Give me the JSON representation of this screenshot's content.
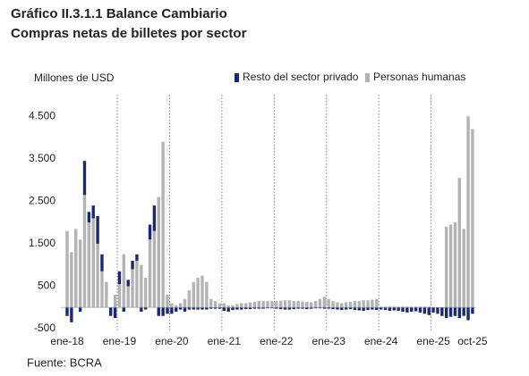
{
  "chart_data": {
    "type": "stacked_bar",
    "title": "Gráfico II.3.1.1 Balance Cambiario",
    "subtitle": "Compras netas de billetes por sector",
    "y_axis_label": "Millones de USD",
    "source": "Fuente: BCRA",
    "categories": [
      "ene-18",
      null,
      null,
      null,
      null,
      null,
      null,
      null,
      null,
      null,
      null,
      null,
      "ene-19",
      null,
      null,
      null,
      null,
      null,
      null,
      null,
      null,
      null,
      null,
      null,
      "ene-20",
      null,
      null,
      null,
      null,
      null,
      null,
      null,
      null,
      null,
      null,
      null,
      "ene-21",
      null,
      null,
      null,
      null,
      null,
      null,
      null,
      null,
      null,
      null,
      null,
      "ene-22",
      null,
      null,
      null,
      null,
      null,
      null,
      null,
      null,
      null,
      null,
      null,
      "ene-23",
      null,
      null,
      null,
      null,
      null,
      null,
      null,
      null,
      null,
      null,
      null,
      "ene-24",
      null,
      null,
      null,
      null,
      null,
      null,
      null,
      null,
      null,
      null,
      null,
      "ene-25",
      null,
      null,
      null,
      null,
      null,
      null,
      null,
      null,
      "oct-25"
    ],
    "series": [
      {
        "name": "Resto del sector privado",
        "color": "#1c2a6b",
        "values": [
          -200,
          -350,
          0,
          -100,
          800,
          250,
          300,
          650,
          400,
          0,
          -200,
          -250,
          300,
          -100,
          150,
          200,
          150,
          -100,
          -50,
          350,
          600,
          -200,
          -200,
          -150,
          -150,
          -100,
          -50,
          -100,
          -50,
          -50,
          -50,
          -50,
          -50,
          -30,
          -30,
          -30,
          -80,
          -100,
          -60,
          -50,
          -50,
          -40,
          -40,
          -30,
          -30,
          -30,
          -20,
          -20,
          -30,
          -40,
          -50,
          -50,
          -40,
          -30,
          -30,
          -40,
          -30,
          -20,
          -20,
          -30,
          -30,
          -40,
          -50,
          -60,
          -50,
          -40,
          -60,
          -70,
          -80,
          -60,
          -50,
          -60,
          -50,
          -60,
          -80,
          -70,
          -80,
          -100,
          -120,
          -100,
          -90,
          -120,
          -150,
          -180,
          -120,
          -150,
          -200,
          -250,
          -220,
          -200,
          -250,
          -200,
          -300,
          -150
        ]
      },
      {
        "name": "Personas humanas",
        "color": "#b3b3b3",
        "values": [
          1800,
          1300,
          1850,
          1600,
          2650,
          2000,
          2100,
          1500,
          850,
          600,
          0,
          300,
          550,
          1250,
          500,
          900,
          1100,
          1000,
          700,
          1600,
          1800,
          2600,
          3900,
          300,
          100,
          50,
          100,
          200,
          400,
          600,
          700,
          750,
          600,
          200,
          150,
          100,
          100,
          50,
          50,
          80,
          100,
          100,
          120,
          130,
          150,
          150,
          150,
          150,
          150,
          160,
          170,
          170,
          150,
          150,
          140,
          130,
          120,
          150,
          200,
          250,
          200,
          150,
          120,
          100,
          120,
          130,
          150,
          150,
          170,
          170,
          180,
          200,
          20,
          20,
          20,
          20,
          20,
          20,
          20,
          20,
          20,
          20,
          20,
          20,
          0,
          0,
          0,
          1900,
          1950,
          2000,
          3050,
          1850,
          4500,
          4200
        ]
      }
    ],
    "ylim": [
      -500,
      4800
    ],
    "yticks": [
      {
        "value": -500,
        "label": "-500"
      },
      500,
      {
        "value": 1500,
        "label": "1.500"
      },
      {
        "value": 2500,
        "label": "2.500"
      },
      {
        "value": 3500,
        "label": "3.500"
      },
      {
        "value": 4500,
        "label": "4.500"
      }
    ],
    "legend": "top-right"
  }
}
